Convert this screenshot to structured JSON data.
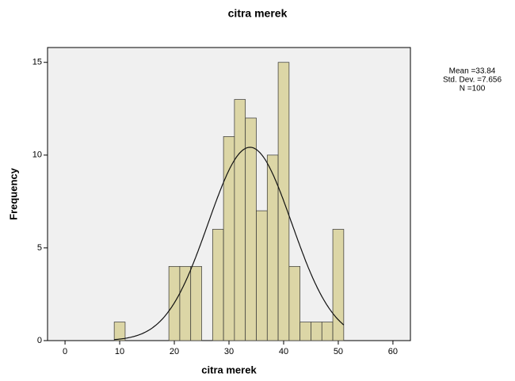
{
  "chart_data": {
    "type": "histogram",
    "title": "citra merek",
    "xlabel": "citra merek",
    "ylabel": "Frequency",
    "bins": [
      9,
      11,
      13,
      15,
      17,
      19,
      21,
      23,
      25,
      27,
      29,
      31,
      33,
      35,
      37,
      39,
      41,
      43,
      45,
      47,
      49,
      51
    ],
    "values": [
      1,
      0,
      0,
      0,
      0,
      4,
      4,
      4,
      0,
      6,
      11,
      13,
      12,
      7,
      10,
      15,
      4,
      1,
      1,
      1,
      6
    ],
    "color": "#dcd6a6",
    "xlim": [
      -3.2,
      63.2
    ],
    "ylim": [
      0,
      15.8
    ],
    "xticks": [
      0,
      10,
      20,
      30,
      40,
      50,
      60
    ],
    "yticks": [
      0,
      5,
      10,
      15
    ],
    "stats": [
      "Mean =33.84",
      "Std. Dev. =7.656",
      "N =100"
    ],
    "normal_curve": {
      "mean": 33.84,
      "sd": 7.656,
      "n": 100
    }
  }
}
